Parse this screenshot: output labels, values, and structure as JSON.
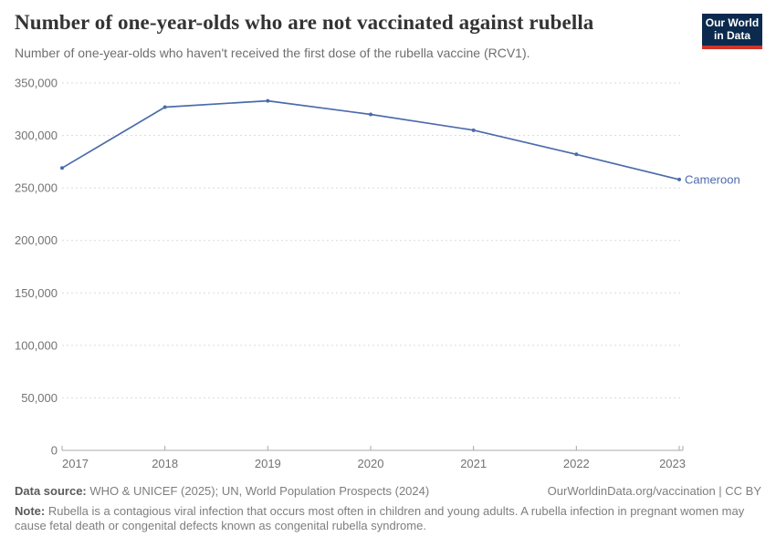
{
  "header": {
    "title": "Number of one-year-olds who are not vaccinated against rubella",
    "subtitle": "Number of one-year-olds who haven't received the first dose of the rubella vaccine (RCV1).",
    "logo": {
      "line1": "Our World",
      "line2": "in Data"
    }
  },
  "chart_data": {
    "type": "line",
    "title": "Number of one-year-olds who are not vaccinated against rubella",
    "x": [
      2017,
      2018,
      2019,
      2020,
      2021,
      2022,
      2023
    ],
    "series": [
      {
        "name": "Cameroon",
        "values": [
          269000,
          327000,
          333000,
          320000,
          305000,
          282000,
          258000
        ]
      }
    ],
    "xlabel": "",
    "ylabel": "",
    "ylim": [
      0,
      350000
    ],
    "ytick_step": 50000,
    "yticks": [
      0,
      50000,
      100000,
      150000,
      200000,
      250000,
      300000,
      350000
    ],
    "grid": "horizontal-dashed",
    "legend": "end-of-line-label"
  },
  "footer": {
    "datasource_label": "Data source:",
    "datasource": " WHO & UNICEF (2025); UN, World Population Prospects (2024)",
    "rights": "OurWorldinData.org/vaccination | CC BY",
    "note_label": "Note:",
    "note": " Rubella is a contagious viral infection that occurs most often in children and young adults. A rubella infection in pregnant women may cause fetal death or congenital defects known as congenital rubella syndrome."
  },
  "colors": {
    "line": "#4b6bab",
    "grid": "#dadada",
    "axis": "#a8a8a8",
    "tick_text": "#737373",
    "logo_bg": "#0c2a4d",
    "logo_red": "#cf352b"
  }
}
